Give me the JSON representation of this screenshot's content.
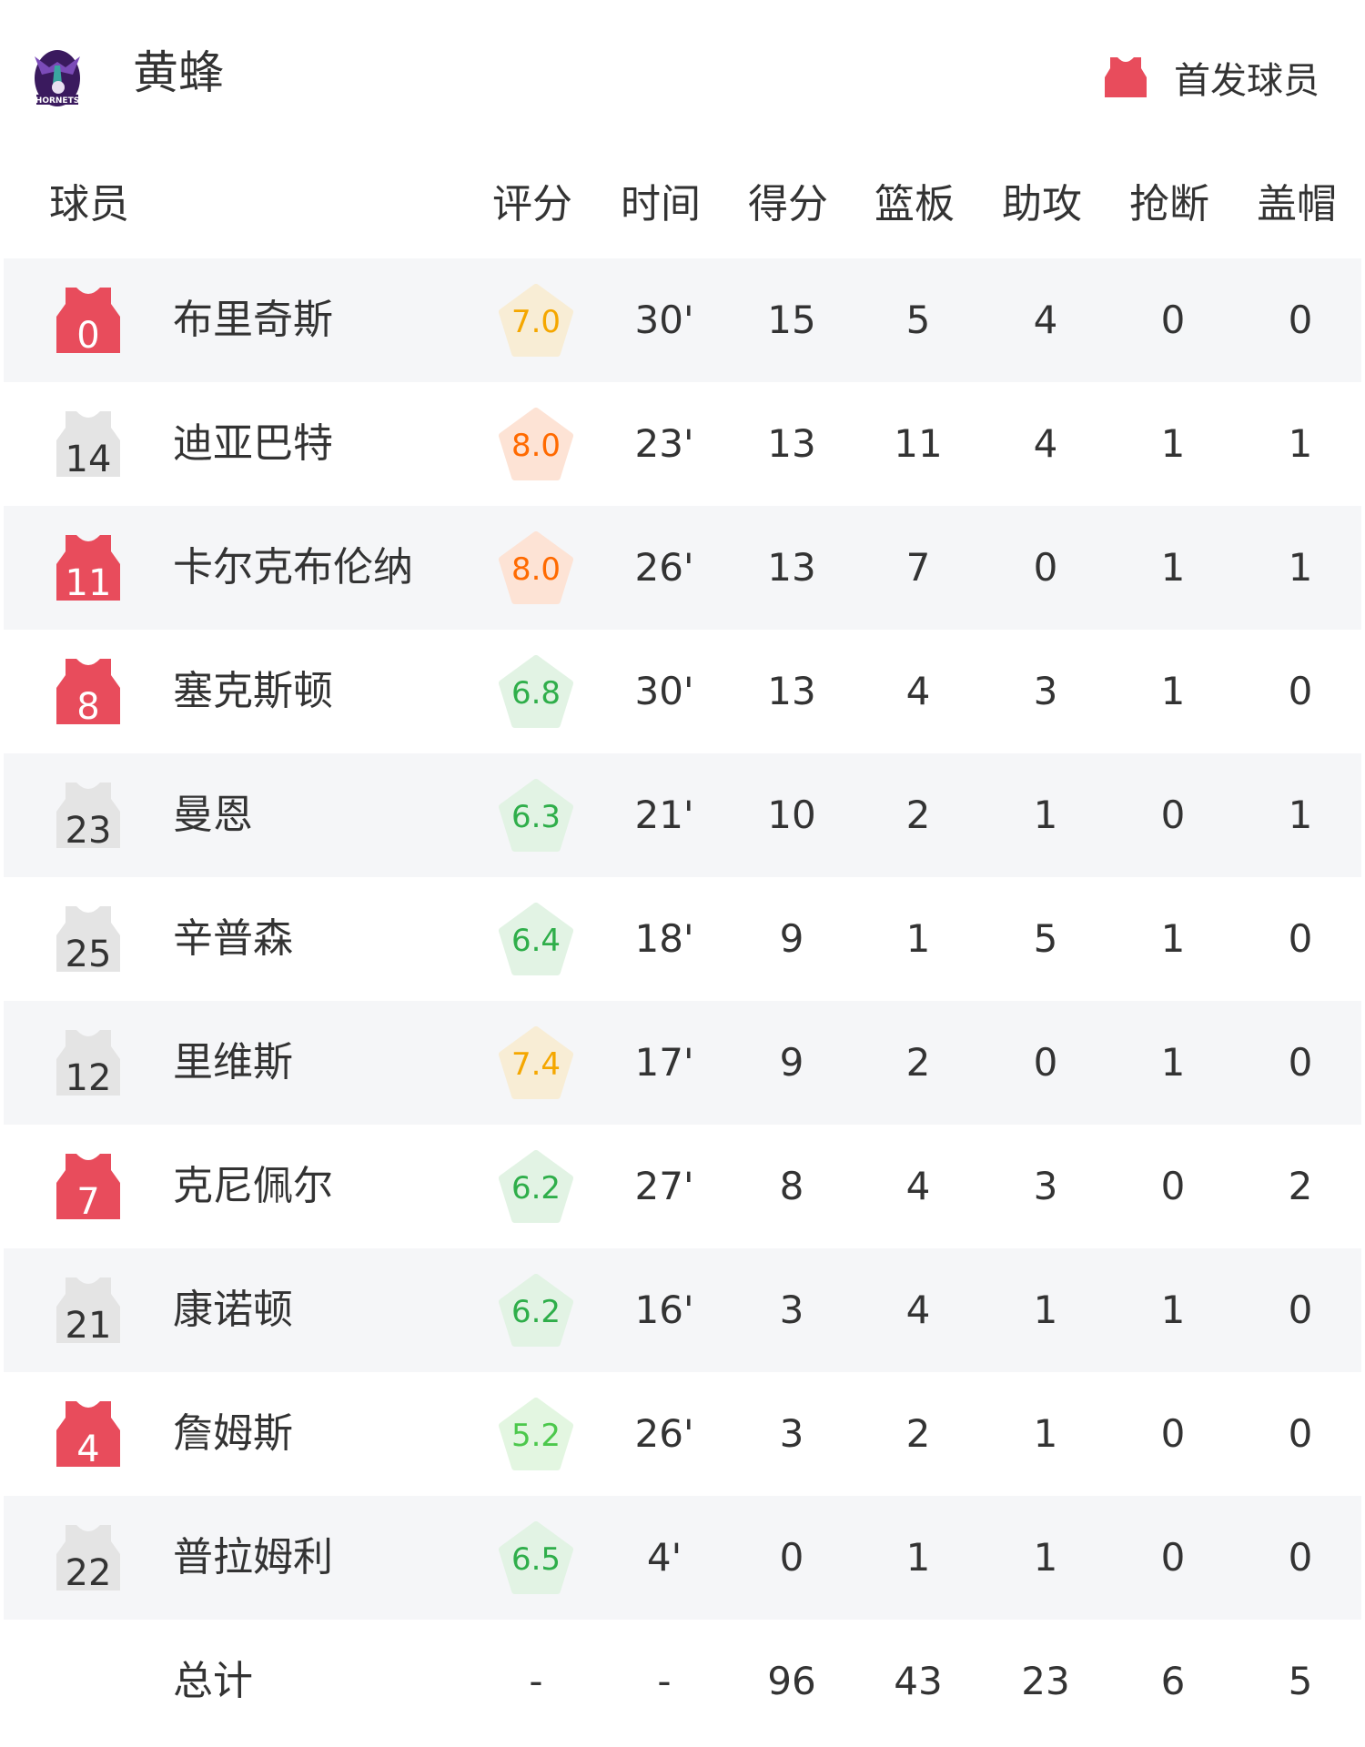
{
  "header": {
    "team_name": "黄蜂",
    "logo_text": "HORNETS",
    "legend_label": "首发球员",
    "starter_color": "#e84c5c",
    "bench_color": "#e4e4e4"
  },
  "columns": [
    "球员",
    "评分",
    "时间",
    "得分",
    "篮板",
    "助攻",
    "抢断",
    "盖帽"
  ],
  "rating_colors": {
    "high": {
      "text": "#ff6a00",
      "bg": "#fde3d5"
    },
    "good": {
      "text": "#f5a700",
      "bg": "#f8edd5"
    },
    "mid": {
      "text": "#2fae4a",
      "bg": "#e2f3e4"
    },
    "low": {
      "text": "#4cc84c",
      "bg": "#e3f6e1"
    }
  },
  "players": [
    {
      "number": "0",
      "name": "布里奇斯",
      "starter": true,
      "rating": "7.0",
      "time": "30'",
      "pts": "15",
      "reb": "5",
      "ast": "4",
      "stl": "0",
      "blk": "0"
    },
    {
      "number": "14",
      "name": "迪亚巴特",
      "starter": false,
      "rating": "8.0",
      "time": "23'",
      "pts": "13",
      "reb": "11",
      "ast": "4",
      "stl": "1",
      "blk": "1"
    },
    {
      "number": "11",
      "name": "卡尔克布伦纳",
      "starter": true,
      "rating": "8.0",
      "time": "26'",
      "pts": "13",
      "reb": "7",
      "ast": "0",
      "stl": "1",
      "blk": "1"
    },
    {
      "number": "8",
      "name": "塞克斯顿",
      "starter": true,
      "rating": "6.8",
      "time": "30'",
      "pts": "13",
      "reb": "4",
      "ast": "3",
      "stl": "1",
      "blk": "0"
    },
    {
      "number": "23",
      "name": "曼恩",
      "starter": false,
      "rating": "6.3",
      "time": "21'",
      "pts": "10",
      "reb": "2",
      "ast": "1",
      "stl": "0",
      "blk": "1"
    },
    {
      "number": "25",
      "name": "辛普森",
      "starter": false,
      "rating": "6.4",
      "time": "18'",
      "pts": "9",
      "reb": "1",
      "ast": "5",
      "stl": "1",
      "blk": "0"
    },
    {
      "number": "12",
      "name": "里维斯",
      "starter": false,
      "rating": "7.4",
      "time": "17'",
      "pts": "9",
      "reb": "2",
      "ast": "0",
      "stl": "1",
      "blk": "0"
    },
    {
      "number": "7",
      "name": "克尼佩尔",
      "starter": true,
      "rating": "6.2",
      "time": "27'",
      "pts": "8",
      "reb": "4",
      "ast": "3",
      "stl": "0",
      "blk": "2"
    },
    {
      "number": "21",
      "name": "康诺顿",
      "starter": false,
      "rating": "6.2",
      "time": "16'",
      "pts": "3",
      "reb": "4",
      "ast": "1",
      "stl": "1",
      "blk": "0"
    },
    {
      "number": "4",
      "name": "詹姆斯",
      "starter": true,
      "rating": "5.2",
      "time": "26'",
      "pts": "3",
      "reb": "2",
      "ast": "1",
      "stl": "0",
      "blk": "0"
    },
    {
      "number": "22",
      "name": "普拉姆利",
      "starter": false,
      "rating": "6.5",
      "time": "4'",
      "pts": "0",
      "reb": "1",
      "ast": "1",
      "stl": "0",
      "blk": "0"
    }
  ],
  "totals": {
    "label": "总计",
    "rating": "-",
    "time": "-",
    "pts": "96",
    "reb": "43",
    "ast": "23",
    "stl": "6",
    "blk": "5"
  }
}
